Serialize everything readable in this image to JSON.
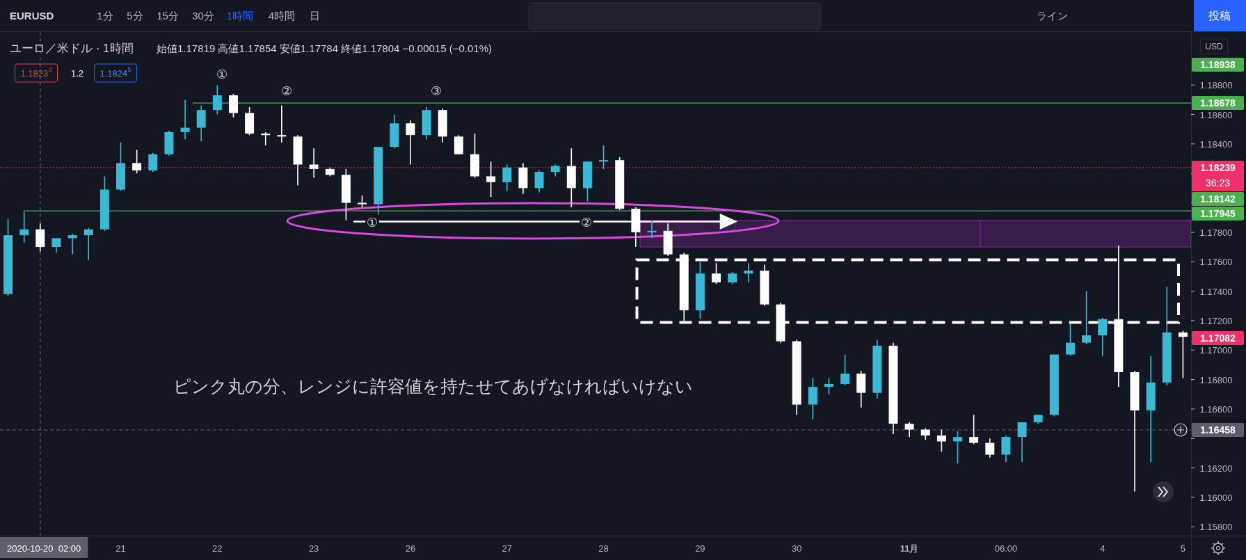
{
  "chart_data": {
    "type": "candlestick",
    "title": "ユーロ／米ドル · 1時間",
    "subtitle": "始値1.17819 高値1.17854 安値1.17784 終値1.17804 −0.00015 (−0.01%)",
    "ylabel": "USD",
    "categories": [
      null,
      null,
      "2020-10-20  02:00",
      null,
      null,
      null,
      null,
      "21",
      null,
      null,
      null,
      null,
      null,
      "22",
      null,
      null,
      null,
      null,
      null,
      "23",
      null,
      null,
      null,
      null,
      null,
      "26",
      null,
      null,
      null,
      null,
      null,
      "27",
      null,
      null,
      null,
      null,
      null,
      "28",
      null,
      null,
      null,
      null,
      null,
      "29",
      null,
      null,
      null,
      null,
      null,
      "30",
      null,
      null,
      null,
      null,
      null,
      null,
      "**11月**",
      null,
      null,
      null,
      null,
      null,
      "06:00",
      null,
      null,
      null,
      null,
      null,
      "4",
      null,
      null,
      null,
      null,
      "5"
    ],
    "ohlc": [
      [
        1.1738,
        1.1789,
        1.1737,
        1.1778
      ],
      [
        1.1778,
        1.1794,
        1.1773,
        1.1782
      ],
      [
        1.1782,
        1.1786,
        1.1767,
        1.177
      ],
      [
        1.177,
        1.1776,
        1.1766,
        1.1776
      ],
      [
        1.1776,
        1.1779,
        1.1765,
        1.1778
      ],
      [
        1.1778,
        1.1783,
        1.1761,
        1.1782
      ],
      [
        1.1782,
        1.1818,
        1.1781,
        1.1809
      ],
      [
        1.1809,
        1.1841,
        1.1808,
        1.1827
      ],
      [
        1.1827,
        1.1836,
        1.182,
        1.1822
      ],
      [
        1.1822,
        1.1834,
        1.1821,
        1.1833
      ],
      [
        1.1833,
        1.1849,
        1.1832,
        1.1848
      ],
      [
        1.1848,
        1.187,
        1.1843,
        1.1851
      ],
      [
        1.1851,
        1.1866,
        1.1842,
        1.1863
      ],
      [
        1.1863,
        1.188,
        1.186,
        1.1873
      ],
      [
        1.1873,
        1.1874,
        1.1858,
        1.1861
      ],
      [
        1.1861,
        1.1865,
        1.1846,
        1.1847
      ],
      [
        1.1847,
        1.1848,
        1.1839,
        1.1846
      ],
      [
        1.1846,
        1.1866,
        1.1841,
        1.1845
      ],
      [
        1.1845,
        1.1846,
        1.1812,
        1.1826
      ],
      [
        1.1826,
        1.1837,
        1.1817,
        1.1823
      ],
      [
        1.1823,
        1.1824,
        1.1818,
        1.1819
      ],
      [
        1.1819,
        1.1823,
        1.1788,
        1.18
      ],
      [
        1.18,
        1.1805,
        1.1797,
        1.1799
      ],
      [
        1.1799,
        1.1838,
        1.1792,
        1.1838
      ],
      [
        1.1838,
        1.186,
        1.1837,
        1.1854
      ],
      [
        1.1854,
        1.1856,
        1.1826,
        1.1846
      ],
      [
        1.1846,
        1.1865,
        1.1843,
        1.1863
      ],
      [
        1.1863,
        1.1864,
        1.1841,
        1.1845
      ],
      [
        1.1845,
        1.1846,
        1.1833,
        1.1833
      ],
      [
        1.1833,
        1.1847,
        1.1817,
        1.1818
      ],
      [
        1.1818,
        1.1828,
        1.1804,
        1.1814
      ],
      [
        1.1814,
        1.1826,
        1.1808,
        1.1824
      ],
      [
        1.1824,
        1.1827,
        1.1806,
        1.181
      ],
      [
        1.181,
        1.1822,
        1.1807,
        1.1821
      ],
      [
        1.1821,
        1.1826,
        1.1818,
        1.1825
      ],
      [
        1.1825,
        1.1837,
        1.1797,
        1.181
      ],
      [
        1.181,
        1.1828,
        1.1801,
        1.1828
      ],
      [
        1.1828,
        1.1839,
        1.1823,
        1.1829
      ],
      [
        1.1829,
        1.1831,
        1.1795,
        1.1796
      ],
      [
        1.1796,
        1.1797,
        1.177,
        1.178
      ],
      [
        1.178,
        1.1788,
        1.1776,
        1.1781
      ],
      [
        1.1781,
        1.1786,
        1.1764,
        1.1765
      ],
      [
        1.1765,
        1.1766,
        1.172,
        1.1727
      ],
      [
        1.1727,
        1.176,
        1.1721,
        1.1752
      ],
      [
        1.1752,
        1.1759,
        1.1745,
        1.1746
      ],
      [
        1.1746,
        1.1753,
        1.1745,
        1.1752
      ],
      [
        1.1752,
        1.1759,
        1.1746,
        1.1754
      ],
      [
        1.1754,
        1.1758,
        1.173,
        1.1731
      ],
      [
        1.1731,
        1.1732,
        1.1705,
        1.1706
      ],
      [
        1.1706,
        1.1707,
        1.1656,
        1.1663
      ],
      [
        1.1663,
        1.1681,
        1.1653,
        1.1675
      ],
      [
        1.1675,
        1.1681,
        1.167,
        1.1677
      ],
      [
        1.1677,
        1.1697,
        1.1676,
        1.1684
      ],
      [
        1.1684,
        1.1686,
        1.1661,
        1.1671
      ],
      [
        1.1671,
        1.1707,
        1.1667,
        1.1703
      ],
      [
        1.1703,
        1.1705,
        1.1643,
        1.165
      ],
      [
        1.165,
        1.1651,
        1.1641,
        1.1646
      ],
      [
        1.1646,
        1.1647,
        1.1639,
        1.1642
      ],
      [
        1.1642,
        1.1646,
        1.1631,
        1.1638
      ],
      [
        1.1638,
        1.1645,
        1.1623,
        1.1641
      ],
      [
        1.1641,
        1.1656,
        1.1636,
        1.1637
      ],
      [
        1.1637,
        1.164,
        1.1627,
        1.1629
      ],
      [
        1.1629,
        1.1642,
        1.1624,
        1.1641
      ],
      [
        1.1641,
        1.1651,
        1.1624,
        1.1651
      ],
      [
        1.1651,
        1.1656,
        1.165,
        1.1656
      ],
      [
        1.1656,
        1.1697,
        1.1655,
        1.1697
      ],
      [
        1.1697,
        1.1718,
        1.1696,
        1.1705
      ],
      [
        1.1705,
        1.174,
        1.1704,
        1.171
      ],
      [
        1.171,
        1.1722,
        1.1696,
        1.1721
      ],
      [
        1.1721,
        1.1771,
        1.1675,
        1.1685
      ],
      [
        1.1685,
        1.1686,
        1.1604,
        1.1659
      ],
      [
        1.1659,
        1.1696,
        1.1624,
        1.1678
      ],
      [
        1.1678,
        1.1743,
        1.1676,
        1.1712
      ],
      [
        1.1712,
        1.1713,
        1.1681,
        1.1709
      ]
    ],
    "colors": [
      "#3cb8d4",
      "#3cb8d4",
      "#ffffff",
      "#3cb8d4",
      "#3cb8d4",
      "#3cb8d4",
      "#3cb8d4",
      "#3cb8d4",
      "#ffffff",
      "#3cb8d4",
      "#3cb8d4",
      "#3cb8d4",
      "#3cb8d4",
      "#3cb8d4",
      "#ffffff",
      "#ffffff",
      "#ffffff",
      "#ffffff",
      "#ffffff",
      "#ffffff",
      "#ffffff",
      "#ffffff",
      "#ffffff",
      "#3cb8d4",
      "#3cb8d4",
      "#ffffff",
      "#3cb8d4",
      "#ffffff",
      "#ffffff",
      "#ffffff",
      "#ffffff",
      "#3cb8d4",
      "#ffffff",
      "#3cb8d4",
      "#3cb8d4",
      "#ffffff",
      "#3cb8d4",
      "#3cb8d4",
      "#ffffff",
      "#ffffff",
      "#3cb8d4",
      "#ffffff",
      "#ffffff",
      "#3cb8d4",
      "#ffffff",
      "#3cb8d4",
      "#3cb8d4",
      "#ffffff",
      "#ffffff",
      "#ffffff",
      "#3cb8d4",
      "#3cb8d4",
      "#3cb8d4",
      "#ffffff",
      "#3cb8d4",
      "#ffffff",
      "#ffffff",
      "#ffffff",
      "#ffffff",
      "#3cb8d4",
      "#ffffff",
      "#ffffff",
      "#3cb8d4",
      "#3cb8d4",
      "#3cb8d4",
      "#3cb8d4",
      "#3cb8d4",
      "#3cb8d4",
      "#3cb8d4",
      "#ffffff",
      "#ffffff",
      "#3cb8d4",
      "#3cb8d4",
      "#ffffff"
    ],
    "ylim": [
      1.1574,
      1.1916
    ],
    "yticks": [
      {
        "value": 1.158,
        "label": "1.15800"
      },
      {
        "value": 1.16,
        "label": "1.16000"
      },
      {
        "value": 1.162,
        "label": "1.16200"
      },
      {
        "value": 1.164,
        "label": null
      },
      {
        "value": 1.166,
        "label": "1.16600"
      },
      {
        "value": 1.168,
        "label": "1.16800"
      },
      {
        "value": 1.17,
        "label": "1.17000"
      },
      {
        "value": 1.172,
        "label": "1.17200"
      },
      {
        "value": 1.174,
        "label": "1.17400"
      },
      {
        "value": 1.176,
        "label": "1.17600"
      },
      {
        "value": 1.178,
        "label": "1.17800"
      },
      {
        "value": 1.18,
        "label": null
      },
      {
        "value": 1.182,
        "label": null
      },
      {
        "value": 1.184,
        "label": "1.18400"
      },
      {
        "value": 1.186,
        "label": "1.18600"
      },
      {
        "value": 1.188,
        "label": "1.18800"
      }
    ],
    "ref_lines": [
      {
        "axis": "y",
        "value": 1.18678,
        "label": "1.18678",
        "color": "#4caf50",
        "line_style": "solid"
      },
      {
        "axis": "y",
        "value": 1.18239,
        "label": "1.18239",
        "color": "#f0306a",
        "line_style": "dotted"
      },
      {
        "axis": "y",
        "value": 1.17945,
        "label": "1.17945",
        "color": "#4caf50",
        "line_style": "solid"
      },
      {
        "axis": "y",
        "value": 1.16458,
        "label": "1.16458",
        "color": "#5d606b",
        "line_style": "dashed"
      },
      {
        "axis": "x",
        "value": "2020-10-20  02:00",
        "color": "#5d606b",
        "line_style": "dashed"
      }
    ],
    "bands": [
      {
        "axis": "y",
        "from": 1.177,
        "to": 1.1788,
        "color": "#371e48"
      }
    ],
    "annotations": [
      "①",
      "②",
      "③",
      {
        "text": "①",
        "y": 1.1787
      },
      {
        "text": "②",
        "y": 1.1787
      },
      "ピンク丸の分、レンジに許容値を持たせてあげなければいけない",
      "36:23",
      "EURUSD",
      "1分",
      "5分",
      "15分",
      "30分",
      "1時間",
      "4時間",
      "日",
      "ライン",
      "投稿",
      "1.1823$^{3}$",
      "1.2",
      "1.1824$^{5}$",
      "1.18938",
      "1.18142",
      "1.17082"
    ]
  }
}
